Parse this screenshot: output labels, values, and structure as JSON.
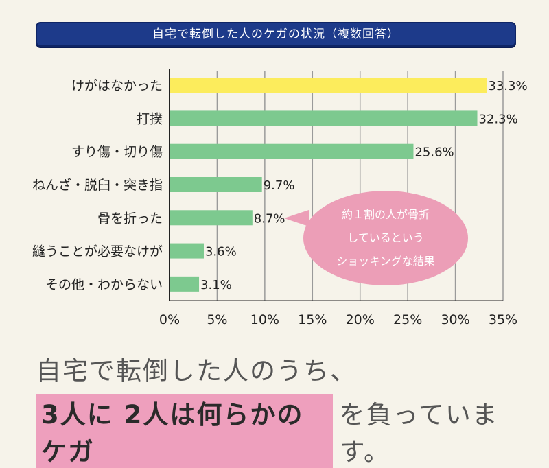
{
  "title": "自宅で転倒した人のケガの状況（複数回答）",
  "chart_data": {
    "type": "bar",
    "orientation": "horizontal",
    "categories": [
      "けがはなかった",
      "打撲",
      "すり傷・切り傷",
      "ねんざ・脱臼・突き指",
      "骨を折った",
      "縫うことが必要なけが",
      "その他・わからない"
    ],
    "values": [
      33.3,
      32.3,
      25.6,
      9.7,
      8.7,
      3.6,
      3.1
    ],
    "value_labels": [
      "33.3%",
      "32.3%",
      "25.6%",
      "9.7%",
      "8.7%",
      "3.6%",
      "3.1%"
    ],
    "xlim": [
      0,
      35
    ],
    "ticks": [
      0,
      5,
      10,
      15,
      20,
      25,
      30,
      35
    ],
    "tick_labels": [
      "0%",
      "5%",
      "10%",
      "15%",
      "20%",
      "25%",
      "30%",
      "35%"
    ],
    "grid": true,
    "colors": {
      "highlight": "#fcec5c",
      "default": "#7dc98f",
      "grid": "#9a9a9a",
      "axis": "#222222"
    }
  },
  "callout": {
    "lines": [
      "約１割の人が骨折",
      "しているという",
      "ショッキングな結果"
    ]
  },
  "summary": {
    "line1": "自宅で転倒した人のうち、",
    "highlight": "3人に 2人は何らかのケガ",
    "line2_rest": "を負っています。"
  }
}
